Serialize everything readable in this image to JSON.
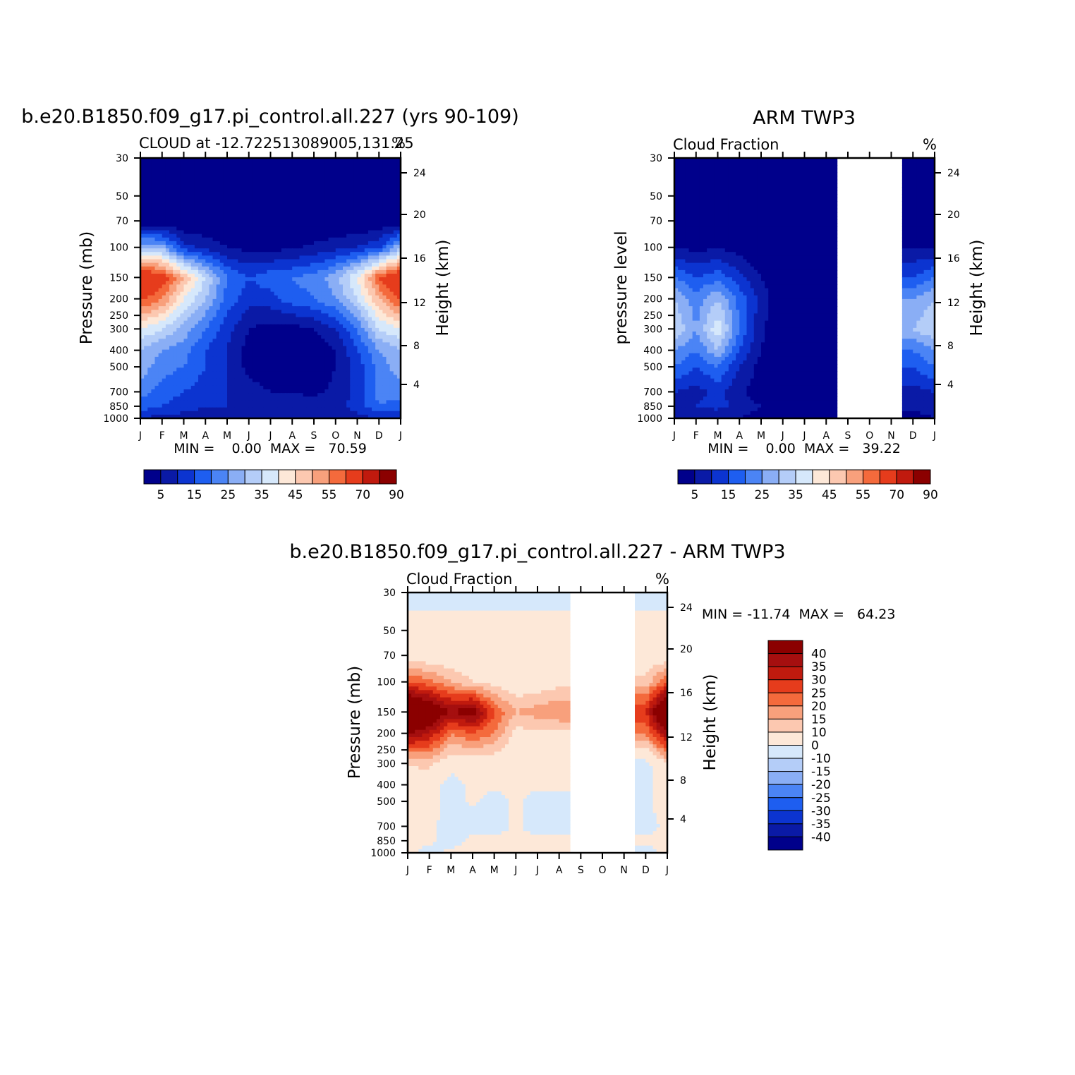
{
  "months": [
    "J",
    "F",
    "M",
    "A",
    "M",
    "J",
    "J",
    "A",
    "S",
    "O",
    "N",
    "D",
    "J"
  ],
  "pressure_ticks": [
    "30",
    "50",
    "70",
    "100",
    "150",
    "200",
    "250",
    "300",
    "400",
    "500",
    "700",
    "850",
    "1000"
  ],
  "pressure_values": [
    30,
    50,
    70,
    100,
    150,
    200,
    250,
    300,
    400,
    500,
    700,
    850,
    1000
  ],
  "height_ticks": [
    "24",
    "20",
    "16",
    "12",
    "8",
    "4"
  ],
  "height_values": [
    24,
    20,
    16,
    12,
    8,
    4
  ],
  "colors": {
    "seq13": [
      "#00008b",
      "#0a1aa6",
      "#0c34d0",
      "#1e5ef0",
      "#4b84f5",
      "#8aaef5",
      "#b4cdf8",
      "#d6e8fb",
      "#fde8d8",
      "#fcc8b0",
      "#f8a07c",
      "#f46a3c",
      "#e63c1c",
      "#c01a0e",
      "#8b0000"
    ],
    "div16": [
      "#00008b",
      "#0a1aa6",
      "#0c34d0",
      "#1e5ef0",
      "#4b84f5",
      "#8aaef5",
      "#b4cdf8",
      "#d6e8fb",
      "#fde8d8",
      "#fcc8b0",
      "#f8a07c",
      "#f46a3c",
      "#e63c1c",
      "#c01a0e",
      "#a50f0f",
      "#8b0000"
    ]
  },
  "panels": {
    "model": {
      "title": "b.e20.B1850.f09_g17.pi_control.all.227 (yrs 90-109)",
      "left_string": "CLOUD at -12.722513089005,131.25",
      "units": "%",
      "ylabel_left": "Pressure (mb)",
      "ylabel_right": "Height (km)",
      "stats": "MIN =    0.00  MAX =   70.59",
      "colorbar_labels": [
        "5",
        "15",
        "25",
        "35",
        "45",
        "55",
        "70",
        "90"
      ]
    },
    "obs": {
      "title": "ARM TWP3",
      "left_string": "Cloud Fraction",
      "units": "%",
      "ylabel_left": "pressure level",
      "ylabel_right": "Height (km)",
      "stats": "MIN =    0.00  MAX =   39.22",
      "colorbar_labels": [
        "5",
        "15",
        "25",
        "35",
        "45",
        "55",
        "70",
        "90"
      ]
    },
    "diff": {
      "title": "b.e20.B1850.f09_g17.pi_control.all.227 - ARM TWP3",
      "left_string": "Cloud Fraction",
      "units": "%",
      "ylabel_left": "Pressure (mb)",
      "ylabel_right": "Height (km)",
      "stats": "MIN = -11.74  MAX =   64.23",
      "colorbar_labels": [
        "40",
        "35",
        "30",
        "25",
        "20",
        "15",
        "10",
        "0",
        "-10",
        "-15",
        "-20",
        "-25",
        "-30",
        "-35",
        "-40"
      ]
    }
  },
  "chart_data": [
    {
      "type": "heatmap",
      "title": "b.e20.B1850.f09_g17.pi_control.all.227 (yrs 90-109)",
      "subtitle": "CLOUD at -12.722513089005,131.25",
      "xlabel": "",
      "ylabel": "Pressure (mb)",
      "ylabel_right": "Height (km)",
      "units": "%",
      "x": [
        "J",
        "F",
        "M",
        "A",
        "M",
        "J",
        "J",
        "A",
        "S",
        "O",
        "N",
        "D",
        "J"
      ],
      "y": [
        30,
        50,
        70,
        100,
        150,
        200,
        300,
        400,
        500,
        700,
        850,
        1000
      ],
      "ylim": [
        1000,
        30
      ],
      "min": 0.0,
      "max": 70.59,
      "colorbar_levels": [
        5,
        10,
        15,
        20,
        25,
        30,
        35,
        40,
        45,
        50,
        55,
        60,
        70,
        80,
        90
      ],
      "values": [
        [
          0,
          0,
          0,
          0,
          0,
          0,
          0,
          0,
          0,
          0,
          0,
          0,
          0
        ],
        [
          0,
          0,
          0,
          0,
          0,
          0,
          0,
          0,
          0,
          0,
          0,
          0,
          0
        ],
        [
          0,
          0,
          0,
          0,
          0,
          0,
          0,
          0,
          0,
          0,
          0,
          0,
          0
        ],
        [
          30,
          28,
          12,
          8,
          5,
          3,
          3,
          4,
          6,
          8,
          10,
          14,
          30
        ],
        [
          70,
          65,
          50,
          35,
          20,
          15,
          18,
          20,
          22,
          28,
          40,
          60,
          70
        ],
        [
          62,
          55,
          40,
          30,
          18,
          12,
          13,
          18,
          20,
          25,
          35,
          50,
          62
        ],
        [
          40,
          35,
          28,
          20,
          12,
          5,
          3,
          3,
          5,
          10,
          20,
          35,
          40
        ],
        [
          30,
          25,
          22,
          15,
          10,
          3,
          0,
          0,
          2,
          5,
          15,
          25,
          30
        ],
        [
          28,
          22,
          20,
          15,
          10,
          3,
          0,
          0,
          2,
          5,
          12,
          22,
          28
        ],
        [
          22,
          18,
          15,
          12,
          10,
          8,
          5,
          4,
          4,
          6,
          12,
          22,
          22
        ],
        [
          18,
          15,
          12,
          10,
          10,
          10,
          10,
          10,
          8,
          8,
          12,
          20,
          18
        ],
        [
          10,
          8,
          8,
          8,
          8,
          8,
          8,
          8,
          8,
          8,
          8,
          10,
          10
        ]
      ]
    },
    {
      "type": "heatmap",
      "title": "ARM TWP3",
      "subtitle": "Cloud Fraction",
      "xlabel": "",
      "ylabel": "pressure level",
      "ylabel_right": "Height (km)",
      "units": "%",
      "x": [
        "J",
        "F",
        "M",
        "A",
        "M",
        "J",
        "J",
        "A",
        "S",
        "O",
        "N",
        "D",
        "J"
      ],
      "y": [
        30,
        50,
        70,
        100,
        150,
        200,
        300,
        400,
        500,
        700,
        850,
        1000
      ],
      "ylim": [
        1000,
        30
      ],
      "min": 0.0,
      "max": 39.22,
      "missing_months": [
        "S",
        "O",
        "N"
      ],
      "colorbar_levels": [
        5,
        10,
        15,
        20,
        25,
        30,
        35,
        40,
        45,
        50,
        55,
        60,
        70,
        80,
        90
      ],
      "values": [
        [
          0,
          0,
          0,
          0,
          0,
          0,
          0,
          0,
          null,
          null,
          null,
          0,
          0
        ],
        [
          0,
          0,
          0,
          0,
          0,
          0,
          0,
          0,
          null,
          null,
          null,
          0,
          0
        ],
        [
          0,
          0,
          0,
          0,
          0,
          0,
          0,
          0,
          null,
          null,
          null,
          0,
          0
        ],
        [
          5,
          3,
          5,
          2,
          0,
          0,
          0,
          0,
          null,
          null,
          null,
          5,
          5
        ],
        [
          20,
          15,
          18,
          12,
          5,
          0,
          0,
          0,
          null,
          null,
          null,
          15,
          20
        ],
        [
          30,
          22,
          30,
          18,
          8,
          0,
          0,
          0,
          null,
          null,
          null,
          25,
          30
        ],
        [
          35,
          25,
          39,
          20,
          6,
          0,
          0,
          0,
          null,
          null,
          null,
          30,
          35
        ],
        [
          25,
          20,
          30,
          15,
          5,
          0,
          0,
          0,
          null,
          null,
          null,
          20,
          25
        ],
        [
          20,
          15,
          20,
          10,
          3,
          0,
          0,
          0,
          null,
          null,
          null,
          15,
          20
        ],
        [
          10,
          8,
          12,
          6,
          2,
          0,
          0,
          0,
          null,
          null,
          null,
          8,
          10
        ],
        [
          8,
          10,
          12,
          8,
          5,
          3,
          0,
          0,
          null,
          null,
          null,
          6,
          8
        ],
        [
          5,
          5,
          5,
          5,
          3,
          0,
          0,
          0,
          null,
          null,
          null,
          3,
          5
        ]
      ]
    },
    {
      "type": "heatmap",
      "title": "b.e20.B1850.f09_g17.pi_control.all.227 - ARM TWP3",
      "subtitle": "Cloud Fraction",
      "xlabel": "",
      "ylabel": "Pressure (mb)",
      "ylabel_right": "Height (km)",
      "units": "%",
      "x": [
        "J",
        "F",
        "M",
        "A",
        "M",
        "J",
        "J",
        "A",
        "S",
        "O",
        "N",
        "D",
        "J"
      ],
      "y": [
        30,
        50,
        70,
        100,
        150,
        200,
        300,
        400,
        500,
        700,
        850,
        1000
      ],
      "ylim": [
        1000,
        30
      ],
      "min": -11.74,
      "max": 64.23,
      "missing_months": [
        "S",
        "O",
        "N"
      ],
      "colorbar_levels": [
        -40,
        -35,
        -30,
        -25,
        -20,
        -15,
        -10,
        0,
        10,
        15,
        20,
        25,
        30,
        35,
        40
      ],
      "values": [
        [
          -5,
          -5,
          -5,
          -5,
          -5,
          -5,
          -5,
          -5,
          null,
          null,
          null,
          -5,
          -5
        ],
        [
          5,
          5,
          5,
          5,
          5,
          5,
          5,
          5,
          null,
          null,
          null,
          5,
          5
        ],
        [
          5,
          5,
          5,
          5,
          5,
          5,
          5,
          5,
          null,
          null,
          null,
          5,
          5
        ],
        [
          25,
          22,
          15,
          10,
          8,
          5,
          5,
          8,
          null,
          null,
          null,
          12,
          25
        ],
        [
          60,
          50,
          40,
          45,
          25,
          15,
          18,
          20,
          null,
          null,
          null,
          30,
          60
        ],
        [
          40,
          35,
          20,
          25,
          20,
          8,
          8,
          8,
          null,
          null,
          null,
          20,
          40
        ],
        [
          10,
          12,
          5,
          5,
          5,
          3,
          3,
          3,
          null,
          null,
          null,
          -3,
          10
        ],
        [
          8,
          5,
          -5,
          3,
          3,
          3,
          3,
          3,
          null,
          null,
          null,
          -5,
          8
        ],
        [
          10,
          5,
          -5,
          2,
          -5,
          3,
          -5,
          -5,
          null,
          null,
          null,
          -5,
          10
        ],
        [
          3,
          3,
          -5,
          -5,
          -5,
          2,
          -5,
          -5,
          null,
          null,
          null,
          -5,
          3
        ],
        [
          3,
          3,
          -5,
          3,
          3,
          3,
          3,
          3,
          null,
          null,
          null,
          3,
          3
        ],
        [
          3,
          -5,
          3,
          3,
          3,
          3,
          3,
          3,
          null,
          null,
          null,
          -5,
          3
        ]
      ]
    }
  ]
}
